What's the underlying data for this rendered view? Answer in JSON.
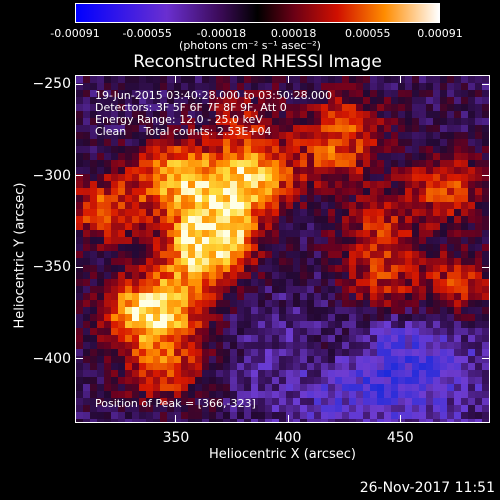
{
  "chart_data": {
    "type": "heatmap",
    "title": "Reconstructed RHESSI Image",
    "xlabel": "Heliocentric X (arcsec)",
    "ylabel": "Heliocentric Y (arcsec)",
    "xlim": [
      305,
      490
    ],
    "ylim": [
      -435,
      -245
    ],
    "xticks": [
      350,
      400,
      450
    ],
    "yticks": [
      -250,
      -300,
      -350,
      -400
    ],
    "colorbar": {
      "ticks": [
        "-0.00091",
        "-0.00055",
        "-0.00018",
        "0.00018",
        "0.00055",
        "0.00091"
      ],
      "tick_values": [
        -0.00091,
        -0.00055,
        -0.00018,
        0.00018,
        0.00055,
        0.00091
      ],
      "range": [
        -0.00091,
        0.00091
      ],
      "units_label": "(photons cm⁻² s⁻¹ asec⁻²)"
    },
    "annotations": {
      "time_range": "19-Jun-2015 03:40:28.000 to 03:50:28.000",
      "detectors": "Detectors: 3F 5F 6F 7F 8F 9F, Att 0",
      "energy": "Energy Range: 12.0 - 25.0 keV",
      "method": "Clean     Total counts: 2.53E+04",
      "peak": "Position of Peak = [366,-323]"
    },
    "peak_position": [
      366,
      -323
    ],
    "sources": [
      {
        "x": 368,
        "y": -328,
        "intensity": 1.0
      },
      {
        "x": 350,
        "y": -300,
        "intensity": 0.85
      },
      {
        "x": 383,
        "y": -300,
        "intensity": 0.9
      },
      {
        "x": 360,
        "y": -345,
        "intensity": 0.7
      },
      {
        "x": 318,
        "y": -318,
        "intensity": 0.6
      },
      {
        "x": 345,
        "y": -372,
        "intensity": 0.75
      },
      {
        "x": 330,
        "y": -375,
        "intensity": 0.55
      },
      {
        "x": 345,
        "y": -405,
        "intensity": 0.6
      },
      {
        "x": 470,
        "y": -305,
        "intensity": 0.6
      },
      {
        "x": 475,
        "y": -360,
        "intensity": 0.55
      },
      {
        "x": 440,
        "y": -360,
        "intensity": 0.5
      },
      {
        "x": 420,
        "y": -290,
        "intensity": 0.45
      },
      {
        "x": 425,
        "y": -270,
        "intensity": 0.4
      },
      {
        "x": 440,
        "y": -330,
        "intensity": 0.45
      },
      {
        "x": 420,
        "y": -395,
        "intensity": 0.35
      },
      {
        "x": 380,
        "y": -270,
        "intensity": 0.35
      }
    ]
  },
  "footer": {
    "date": "26-Nov-2017 11:51"
  }
}
